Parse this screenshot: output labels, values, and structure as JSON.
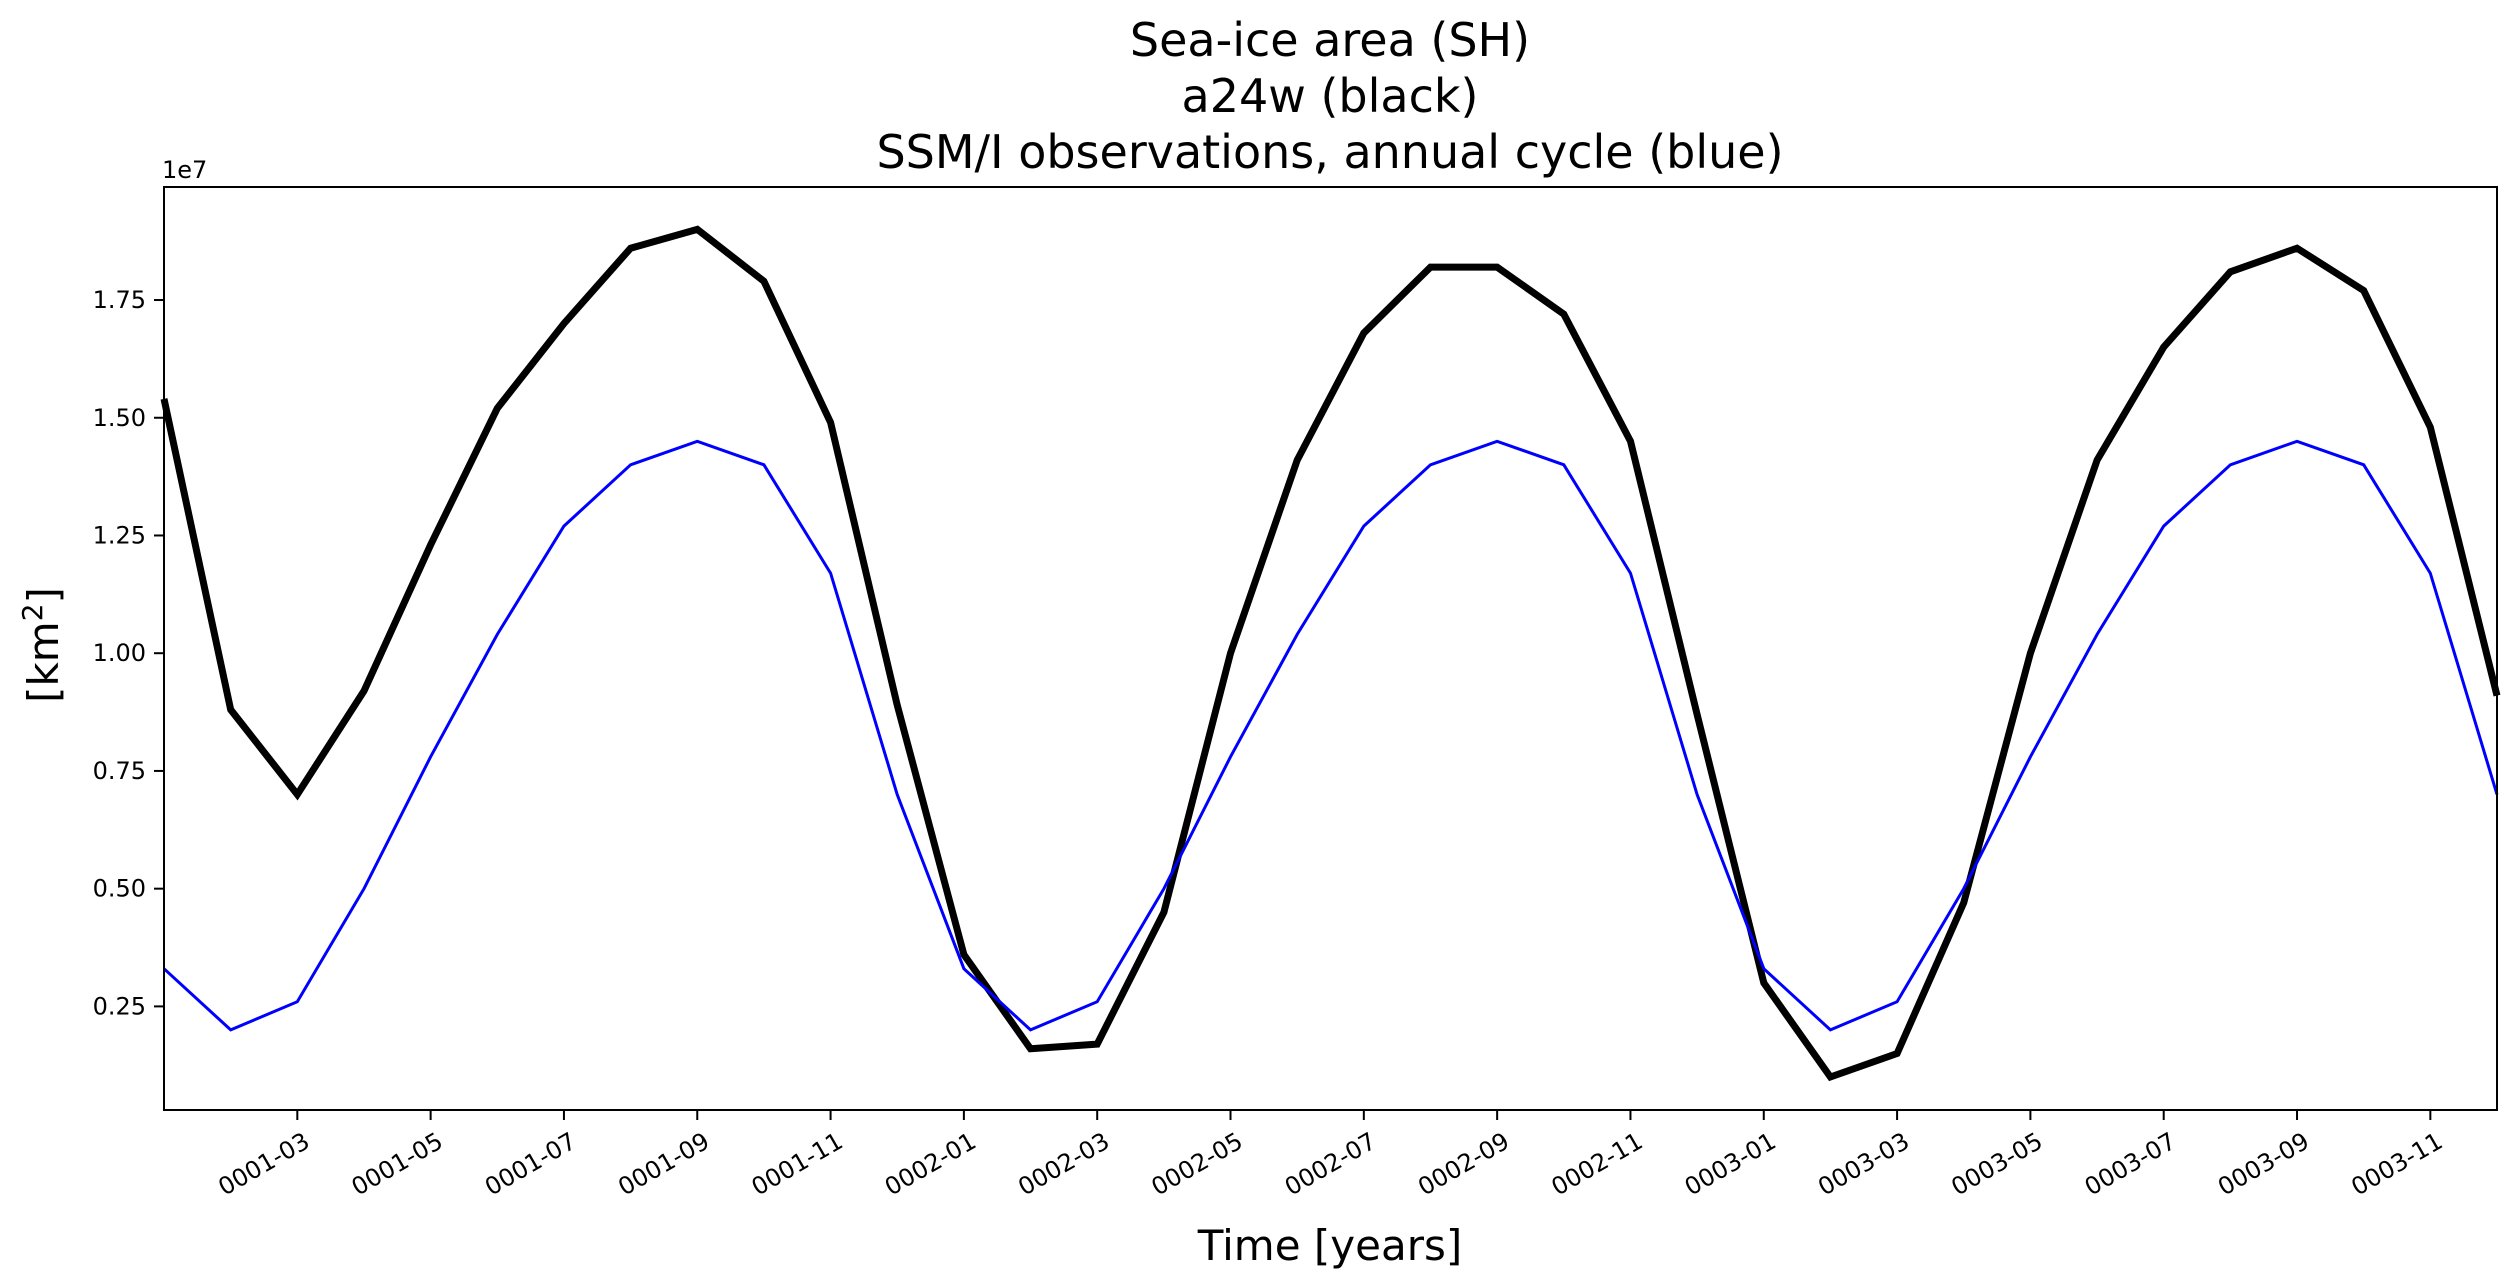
{
  "chart_data": {
    "type": "line",
    "title": [
      "Sea-ice area (SH)",
      "a24w (black)",
      "SSM/I observations, annual cycle (blue)"
    ],
    "xlabel": "Time [years]",
    "ylabel": "[km²]",
    "ylabel_base": "[km",
    "ylabel_sup": "2",
    "ylabel_close": "]",
    "y_offset_label": "1e7",
    "xlim": [
      "0001-01-16",
      "0003-12-16"
    ],
    "ylim": [
      0.03,
      1.99
    ],
    "y_ticks": [
      0.25,
      0.5,
      0.75,
      1.0,
      1.25,
      1.5,
      1.75
    ],
    "y_tick_labels": [
      "0.25",
      "0.50",
      "0.75",
      "1.00",
      "1.25",
      "1.50",
      "1.75"
    ],
    "x_ticks": [
      "0001-03",
      "0001-05",
      "0001-07",
      "0001-09",
      "0001-11",
      "0002-01",
      "0002-03",
      "0002-05",
      "0002-07",
      "0002-09",
      "0002-11",
      "0003-01",
      "0003-03",
      "0003-05",
      "0003-07",
      "0003-09",
      "0003-11"
    ],
    "x": [
      "0001-01",
      "0001-02",
      "0001-03",
      "0001-04",
      "0001-05",
      "0001-06",
      "0001-07",
      "0001-08",
      "0001-09",
      "0001-10",
      "0001-11",
      "0001-12",
      "0002-01",
      "0002-02",
      "0002-03",
      "0002-04",
      "0002-05",
      "0002-06",
      "0002-07",
      "0002-08",
      "0002-09",
      "0002-10",
      "0002-11",
      "0002-12",
      "0003-01",
      "0003-02",
      "0003-03",
      "0003-04",
      "0003-05",
      "0003-06",
      "0003-07",
      "0003-08",
      "0003-09",
      "0003-10",
      "0003-11",
      "0003-12"
    ],
    "grid": false,
    "series": [
      {
        "color": "#000000",
        "values": [
          1.54,
          0.88,
          0.7,
          0.92,
          1.23,
          1.52,
          1.7,
          1.86,
          1.9,
          1.79,
          1.49,
          0.89,
          0.36,
          0.16,
          0.17,
          0.45,
          1.0,
          1.41,
          1.68,
          1.82,
          1.82,
          1.72,
          1.45,
          0.87,
          0.3,
          0.1,
          0.15,
          0.47,
          1.0,
          1.41,
          1.65,
          1.81,
          1.86,
          1.77,
          1.48,
          0.91
        ]
      },
      {
        "color": "#0000ff",
        "values": [
          0.33,
          0.2,
          0.26,
          0.5,
          0.78,
          1.04,
          1.27,
          1.4,
          1.45,
          1.4,
          1.17,
          0.7,
          0.33,
          0.2,
          0.26,
          0.5,
          0.78,
          1.04,
          1.27,
          1.4,
          1.45,
          1.4,
          1.17,
          0.7,
          0.33,
          0.2,
          0.26,
          0.5,
          0.78,
          1.04,
          1.27,
          1.4,
          1.45,
          1.4,
          1.17,
          0.7
        ]
      }
    ]
  }
}
